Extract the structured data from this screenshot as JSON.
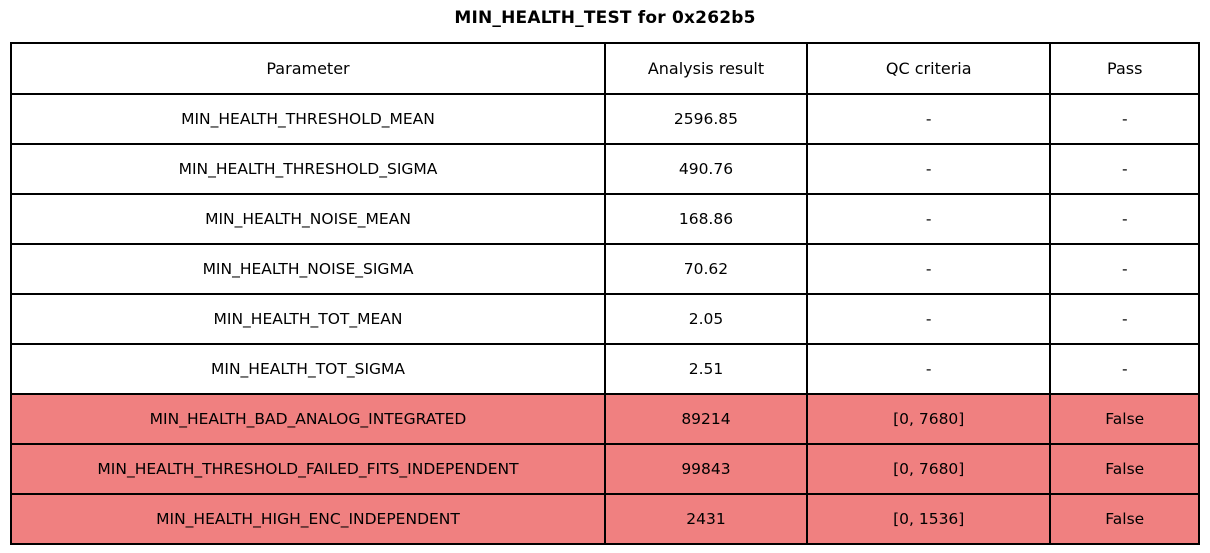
{
  "chart_data": {
    "type": "table",
    "title": "MIN_HEALTH_TEST for 0x262b5",
    "columns": [
      "Parameter",
      "Analysis result",
      "QC criteria",
      "Pass"
    ],
    "rows": [
      [
        "MIN_HEALTH_THRESHOLD_MEAN",
        "2596.85",
        "-",
        "-"
      ],
      [
        "MIN_HEALTH_THRESHOLD_SIGMA",
        "490.76",
        "-",
        "-"
      ],
      [
        "MIN_HEALTH_NOISE_MEAN",
        "168.86",
        "-",
        "-"
      ],
      [
        "MIN_HEALTH_NOISE_SIGMA",
        "70.62",
        "-",
        "-"
      ],
      [
        "MIN_HEALTH_TOT_MEAN",
        "2.05",
        "-",
        "-"
      ],
      [
        "MIN_HEALTH_TOT_SIGMA",
        "2.51",
        "-",
        "-"
      ],
      [
        "MIN_HEALTH_BAD_ANALOG_INTEGRATED",
        "89214",
        "[0, 7680]",
        "False"
      ],
      [
        "MIN_HEALTH_THRESHOLD_FAILED_FITS_INDEPENDENT",
        "99843",
        "[0, 7680]",
        "False"
      ],
      [
        "MIN_HEALTH_HIGH_ENC_INDEPENDENT",
        "2431",
        "[0, 1536]",
        "False"
      ]
    ],
    "row_status": [
      "ok",
      "ok",
      "ok",
      "ok",
      "ok",
      "ok",
      "fail",
      "fail",
      "fail"
    ],
    "legend_position": "none",
    "grid": true
  },
  "colors": {
    "fail_row": "#f08080",
    "border": "#000000",
    "text": "#000000",
    "background": "#ffffff"
  }
}
